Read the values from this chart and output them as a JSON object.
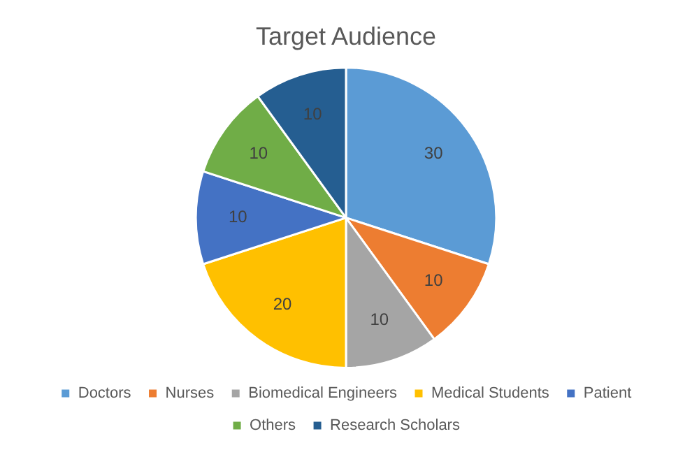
{
  "chart_data": {
    "type": "pie",
    "title": "Target Audience",
    "categories": [
      "Doctors",
      "Nurses",
      "Biomedical Engineers",
      "Medical Students",
      "Patient",
      "Others",
      "Research Scholars"
    ],
    "values": [
      30,
      10,
      10,
      20,
      10,
      10,
      10
    ],
    "colors": [
      "#5b9bd5",
      "#ed7d31",
      "#a5a5a5",
      "#ffc000",
      "#4472c4",
      "#70ad47",
      "#255e91"
    ],
    "data_labels": true,
    "legend": "bottom"
  }
}
